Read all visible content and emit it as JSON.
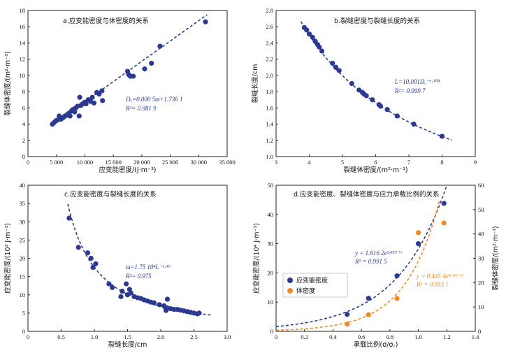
{
  "colors": {
    "navy": "#2b3990",
    "orange": "#f08a24",
    "axis": "#222222"
  },
  "chart_data": [
    {
      "id": "a",
      "type": "scatter",
      "title": "a.应变能密度与体密度的关系",
      "xlabel": "应变能密度/(J·m⁻³)",
      "ylabel": "裂缝体密度/(m²·m⁻³)",
      "xlim": [
        0,
        35000
      ],
      "ylim": [
        0,
        18
      ],
      "xticks": [
        0,
        5000,
        10000,
        15000,
        20000,
        25000,
        30000,
        35000
      ],
      "xtick_labels": [
        "0",
        "5 000",
        "10 000",
        "15 000",
        "20 000",
        "25 000",
        "30 000",
        "35 000"
      ],
      "yticks": [
        0,
        2,
        4,
        6,
        8,
        10,
        12,
        14,
        16,
        18
      ],
      "ytick_labels": [
        "0",
        "2",
        "4",
        "6",
        "8",
        "10",
        "12",
        "14",
        "16",
        "18"
      ],
      "annotation": [
        "Dᵥ=0.000 5ϖ+1.736 1",
        "R²= 0.981 9"
      ],
      "fit": {
        "kind": "linear",
        "a": 0.0005,
        "b": 1.7361,
        "x_range": [
          4000,
          31500
        ]
      },
      "series": [
        {
          "color": "navy",
          "points": [
            [
              4300,
              4.0
            ],
            [
              4600,
              4.2
            ],
            [
              4900,
              4.4
            ],
            [
              5200,
              4.5
            ],
            [
              5500,
              5.0
            ],
            [
              5800,
              4.6
            ],
            [
              6200,
              4.8
            ],
            [
              6500,
              5.0
            ],
            [
              6800,
              5.1
            ],
            [
              7100,
              5.3
            ],
            [
              7400,
              5.0
            ],
            [
              7600,
              5.6
            ],
            [
              7900,
              5.8
            ],
            [
              8200,
              5.5
            ],
            [
              8400,
              6.0
            ],
            [
              8700,
              6.2
            ],
            [
              9000,
              5.0
            ],
            [
              9100,
              7.3
            ],
            [
              9300,
              6.3
            ],
            [
              9600,
              6.5
            ],
            [
              10000,
              6.7
            ],
            [
              10200,
              6.5
            ],
            [
              10600,
              7.0
            ],
            [
              11000,
              6.8
            ],
            [
              11300,
              7.3
            ],
            [
              11600,
              6.6
            ],
            [
              12100,
              7.9
            ],
            [
              12500,
              7.7
            ],
            [
              13000,
              8.1
            ],
            [
              13100,
              6.9
            ],
            [
              17500,
              10.5
            ],
            [
              17700,
              10.1
            ],
            [
              18000,
              9.9
            ],
            [
              18500,
              9.9
            ],
            [
              20500,
              10.8
            ],
            [
              21700,
              11.5
            ],
            [
              23200,
              13.6
            ],
            [
              31200,
              16.6
            ]
          ]
        }
      ]
    },
    {
      "id": "b",
      "type": "scatter",
      "title": "b.裂缝密度与裂缝长度的关系",
      "xlabel": "裂缝体密度/(m²·m⁻³)",
      "ylabel": "裂缝长度/cm",
      "xlim": [
        3,
        9
      ],
      "ylim": [
        1.0,
        2.8
      ],
      "xticks": [
        3,
        4,
        5,
        6,
        7,
        8,
        9
      ],
      "xtick_labels": [
        "3",
        "4",
        "5",
        "6",
        "7",
        "8",
        "9"
      ],
      "yticks": [
        1.0,
        1.2,
        1.4,
        1.6,
        1.8,
        2.0,
        2.2,
        2.4,
        2.6,
        2.8
      ],
      "ytick_labels": [
        "1.0",
        "1.2",
        "1.4",
        "1.6",
        "1.8",
        "2.0",
        "2.2",
        "2.4",
        "2.6",
        "2.8"
      ],
      "annotation": [
        "L=10.001Dᵥ⁻¹·⁰⁰¹",
        "R²= 0.999 7"
      ],
      "fit": {
        "kind": "power",
        "a": 10.001,
        "b": -1.001,
        "x_range": [
          3.75,
          8.3
        ]
      },
      "series": [
        {
          "color": "navy",
          "points": [
            [
              3.85,
              2.59
            ],
            [
              3.92,
              2.56
            ],
            [
              4.0,
              2.51
            ],
            [
              4.1,
              2.47
            ],
            [
              4.18,
              2.42
            ],
            [
              4.25,
              2.38
            ],
            [
              4.3,
              2.35
            ],
            [
              4.38,
              2.3
            ],
            [
              4.7,
              2.15
            ],
            [
              4.8,
              2.1
            ],
            [
              4.9,
              2.06
            ],
            [
              5.28,
              1.9
            ],
            [
              5.5,
              1.82
            ],
            [
              5.6,
              1.79
            ],
            [
              5.65,
              1.77
            ],
            [
              5.72,
              1.75
            ],
            [
              5.9,
              1.7
            ],
            [
              6.1,
              1.64
            ],
            [
              6.15,
              1.62
            ],
            [
              6.35,
              1.58
            ],
            [
              6.65,
              1.5
            ],
            [
              7.15,
              1.4
            ],
            [
              8.0,
              1.25
            ]
          ]
        }
      ]
    },
    {
      "id": "c",
      "type": "scatter",
      "title": "c.应变能密度与裂缝长度的关系",
      "xlabel": "裂缝长度/cm",
      "ylabel": "应变能密度/(10³ J·m⁻³)",
      "xlim": [
        0,
        3.0
      ],
      "ylim": [
        0,
        40
      ],
      "xticks": [
        0,
        0.5,
        1.0,
        1.5,
        2.0,
        2.5,
        3.0
      ],
      "xtick_labels": [
        "0",
        "0.5",
        "1.0",
        "1.5",
        "2.0",
        "2.5",
        "3.0"
      ],
      "yticks": [
        0,
        5,
        10,
        15,
        20,
        25,
        30,
        35,
        40
      ],
      "ytick_labels": [
        "0",
        "5",
        "10",
        "15",
        "20",
        "25",
        "30",
        "35",
        "40"
      ],
      "annotation": [
        "ϖ=1.75 10⁴L⁻¹·³⁵",
        "R²= 0.975"
      ],
      "fit": {
        "kind": "power",
        "a": 17.5,
        "b": -1.35,
        "x_range": [
          0.6,
          2.75
        ]
      },
      "series": [
        {
          "color": "navy",
          "points": [
            [
              0.62,
              31.0
            ],
            [
              0.76,
              23.0
            ],
            [
              0.9,
              21.5
            ],
            [
              0.95,
              20.0
            ],
            [
              0.98,
              17.5
            ],
            [
              1.02,
              18.5
            ],
            [
              1.22,
              13.0
            ],
            [
              1.27,
              12.0
            ],
            [
              1.4,
              9.5
            ],
            [
              1.42,
              11.0
            ],
            [
              1.48,
              13.0
            ],
            [
              1.5,
              10.0
            ],
            [
              1.53,
              11.5
            ],
            [
              1.55,
              10.5
            ],
            [
              1.6,
              9.5
            ],
            [
              1.65,
              9.2
            ],
            [
              1.7,
              9.0
            ],
            [
              1.75,
              8.6
            ],
            [
              1.8,
              8.3
            ],
            [
              1.85,
              8.0
            ],
            [
              1.9,
              7.8
            ],
            [
              1.98,
              7.3
            ],
            [
              2.05,
              7.0
            ],
            [
              2.07,
              6.5
            ],
            [
              2.08,
              5.7
            ],
            [
              2.1,
              6.4
            ],
            [
              2.1,
              8.8
            ],
            [
              2.15,
              6.2
            ],
            [
              2.2,
              6.0
            ],
            [
              2.25,
              6.0
            ],
            [
              2.3,
              5.8
            ],
            [
              2.35,
              5.6
            ],
            [
              2.4,
              5.4
            ],
            [
              2.45,
              5.2
            ],
            [
              2.5,
              5.0
            ],
            [
              2.55,
              4.8
            ],
            [
              2.58,
              5.0
            ]
          ]
        }
      ]
    },
    {
      "id": "d",
      "type": "scatter",
      "title": "d.应变能密度、裂缝体密度与应力承载比例的关系",
      "xlabel": "承载比例(σ/σ꜀)",
      "ylabel": "应变能密度/(10⁴ J·m⁻³)",
      "ylabel_right": "裂缝体密度/(m²·m⁻³)",
      "xlim": [
        0,
        1.4
      ],
      "ylim": [
        0,
        50
      ],
      "ylim_right": [
        0,
        60
      ],
      "xticks": [
        0,
        0.2,
        0.4,
        0.6,
        0.8,
        1.0,
        1.2,
        1.4
      ],
      "xtick_labels": [
        "0",
        "0.2",
        "0.4",
        "0.6",
        "0.8",
        "1.0",
        "1.2",
        "1.4"
      ],
      "yticks": [
        0,
        10,
        20,
        30,
        40,
        50
      ],
      "ytick_labels": [
        "0",
        "10",
        "20",
        "30",
        "40",
        "50"
      ],
      "yticks_right": [
        0,
        10,
        20,
        30,
        40,
        50,
        60
      ],
      "ytick_labels_right": [
        "0",
        "10",
        "20",
        "30",
        "40",
        "50",
        "60"
      ],
      "legend": {
        "placement": "bottom-left",
        "entries": [
          "应变能密度",
          "体密度"
        ]
      },
      "series": [
        {
          "name": "应变能密度",
          "color": "navy",
          "axis": "left",
          "points": [
            [
              0.5,
              5.8
            ],
            [
              0.65,
              11.3
            ],
            [
              0.85,
              19.0
            ],
            [
              1.0,
              30.0
            ],
            [
              1.18,
              43.8
            ]
          ],
          "annotation": [
            "y = 1.616 2e²·⁸⁵⁹ ⁷ˣ",
            "R² = 0.991 5"
          ],
          "fit": {
            "kind": "exp",
            "a": 1.6162,
            "b": 2.8597,
            "x_range": [
              0,
              1.2
            ]
          }
        },
        {
          "name": "体密度",
          "color": "orange",
          "axis": "right",
          "points": [
            [
              0.5,
              3.0
            ],
            [
              0.65,
              6.8
            ],
            [
              0.85,
              13.5
            ],
            [
              1.0,
              40.5
            ],
            [
              1.18,
              44.5
            ]
          ],
          "annotation": [
            "y = 0.445 4e⁴·¹⁶⁹ ⁵ˣ",
            "R² = 0.953 1"
          ],
          "fit": {
            "kind": "exp",
            "a": 0.4454,
            "b": 4.1695,
            "x_range": [
              0,
              1.15
            ]
          }
        }
      ]
    }
  ]
}
